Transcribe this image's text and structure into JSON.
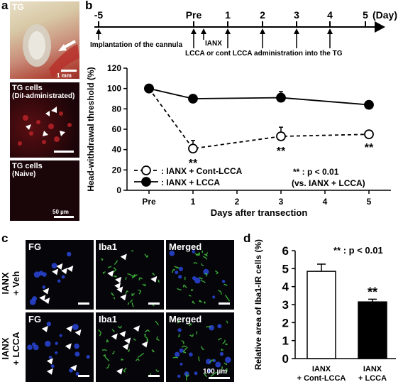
{
  "panels": {
    "a": "a",
    "b": "b",
    "c": "c",
    "d": "d"
  },
  "panel_a": {
    "tile1_title": "TG",
    "tile1_scale": "1 mm",
    "tile2_title": "TG cells",
    "tile2_sub": "(DiI-administrated)",
    "tile3_title": "TG cells",
    "tile3_sub": "(Naive)",
    "tile3_scale": "50 µm"
  },
  "timeline": {
    "ticks": [
      "-5",
      "Pre",
      "1",
      "2",
      "3",
      "4",
      "5"
    ],
    "day_label": "(Day)",
    "implant": "Implantation of the cannula",
    "ianx": "IANX",
    "admin": "LCCA or cont LCCA administration into the TG"
  },
  "chart_data": [
    {
      "type": "line",
      "ylabel": "Head-withdrawal threshold (%)",
      "xlabel": "Days after transection",
      "categories": [
        "Pre",
        "1",
        "2",
        "3",
        "4",
        "5"
      ],
      "ylim": [
        0,
        120
      ],
      "yticks": [
        "0",
        "20",
        "40",
        "60",
        "80",
        "100",
        "120"
      ],
      "series": [
        {
          "name": ": IANX + Cont-LCCA",
          "x": [
            0,
            1,
            3,
            5
          ],
          "values": [
            100,
            41,
            53,
            55
          ],
          "err": [
            0,
            8,
            9,
            2
          ],
          "style": "dashed-open"
        },
        {
          "name": ": IANX + LCCA",
          "x": [
            0,
            1,
            3,
            5
          ],
          "values": [
            100,
            90,
            91,
            84
          ],
          "err": [
            0,
            4,
            6,
            2
          ],
          "style": "solid-filled"
        }
      ],
      "significance": [
        {
          "x": 1,
          "label": "**"
        },
        {
          "x": 3,
          "label": "**"
        },
        {
          "x": 5,
          "label": "**"
        }
      ],
      "legend_note": "** : p < 0.01",
      "legend_note2": "(vs. IANX + LCCA)",
      "colors": {
        "line": "#000000",
        "open_fill": "#ffffff"
      }
    },
    {
      "type": "bar",
      "ylabel": "Relative area of Iba1-IR cells (%)",
      "categories": [
        "IANX + Cont-LCCA",
        "IANX + LCCA"
      ],
      "category_lines": [
        [
          "IANX",
          "+ Cont-LCCA"
        ],
        [
          "IANX",
          "+ LCCA"
        ]
      ],
      "values": [
        4.85,
        3.15
      ],
      "err": [
        0.4,
        0.15
      ],
      "ylim": [
        0,
        6
      ],
      "yticks": [
        "0",
        "1",
        "2",
        "3",
        "4",
        "5",
        "6"
      ],
      "significance": [
        "",
        "**"
      ],
      "note": "** : p < 0.01",
      "colors": {
        "bar1": "#ffffff",
        "bar2": "#000000"
      }
    }
  ],
  "panel_c": {
    "col_titles": [
      "FG",
      "Iba1",
      "Merged"
    ],
    "row_labels": [
      [
        "IANX",
        "+ Veh"
      ],
      [
        "IANX",
        "+ LCCA"
      ]
    ],
    "scale": "100 µm"
  }
}
